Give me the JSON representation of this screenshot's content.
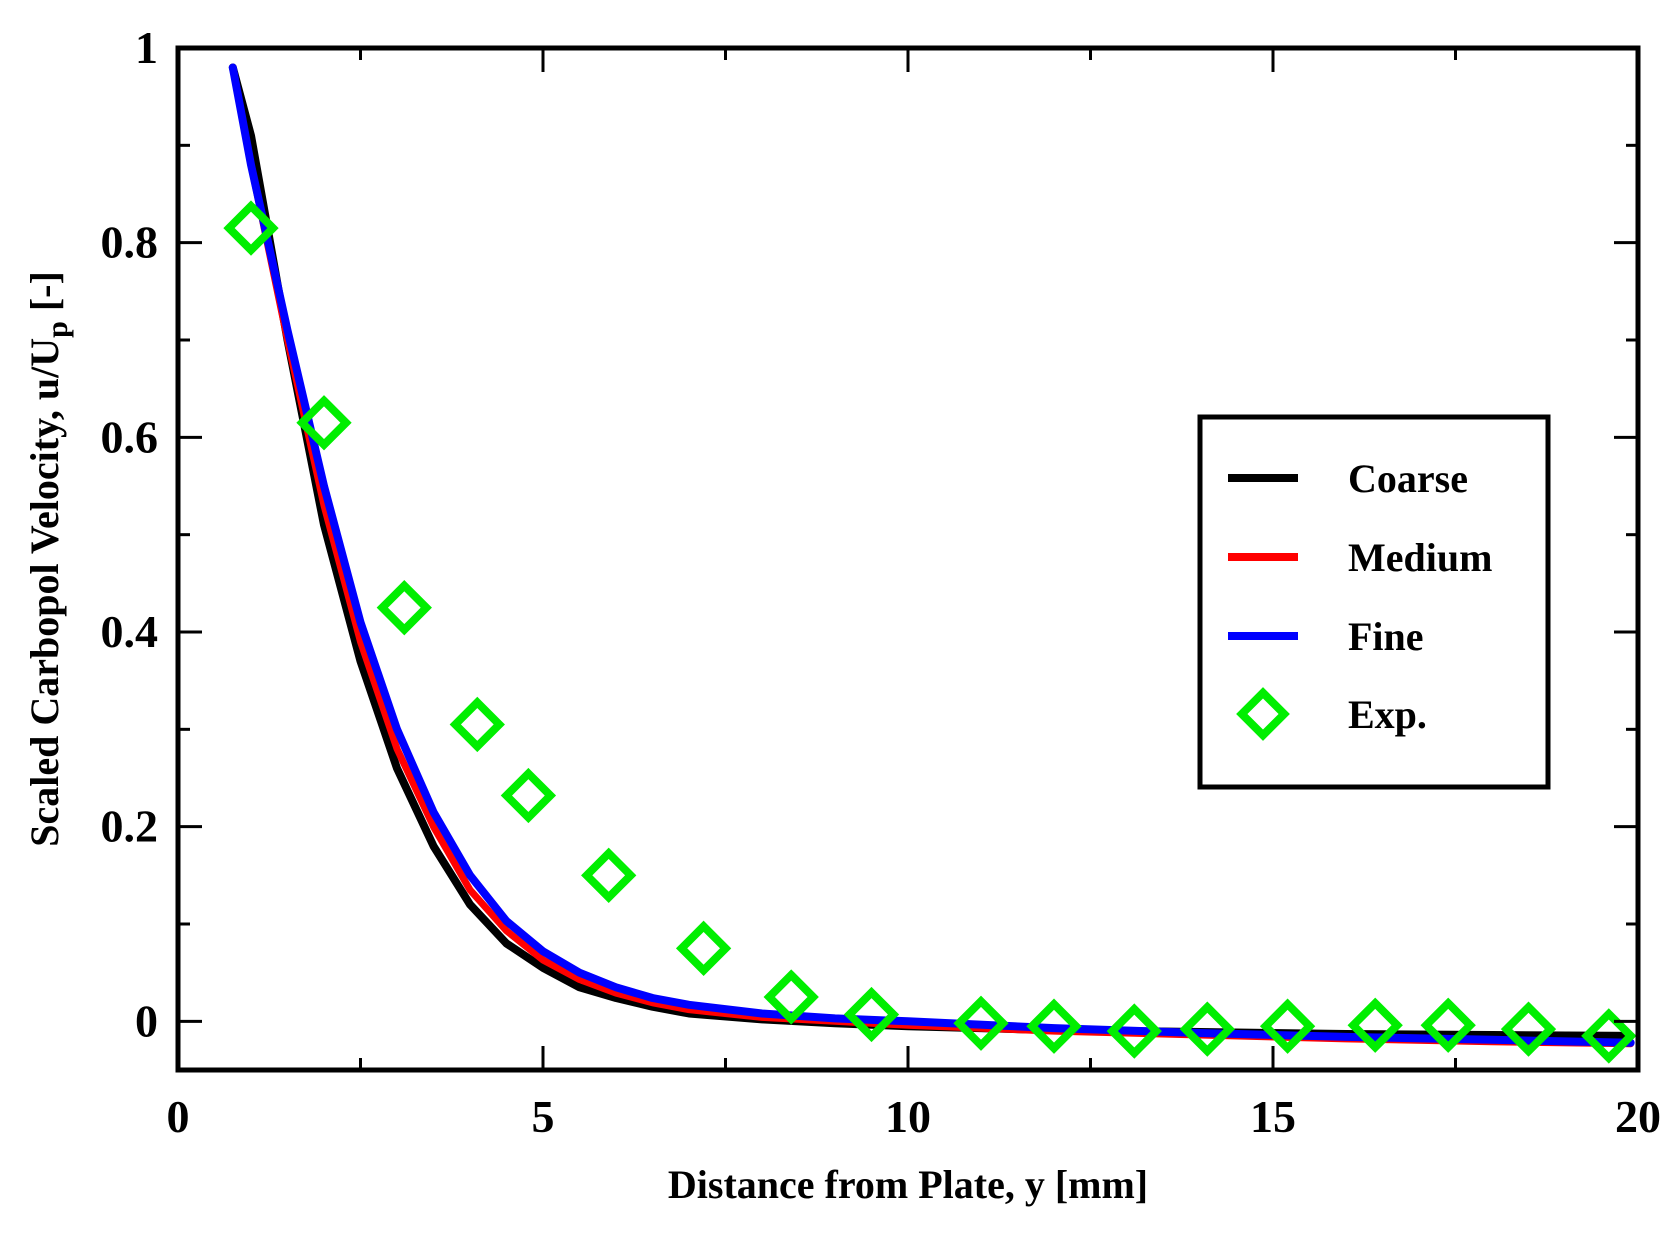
{
  "chart_data": {
    "type": "line",
    "title": "",
    "xlabel": "Distance from Plate, y [mm]",
    "ylabel_main": "Scaled Carbopol Velocity, u/U",
    "ylabel_sub": "p",
    "ylabel_tail": " [-]",
    "xlim": [
      0,
      20
    ],
    "ylim": [
      -0.05,
      1
    ],
    "x_ticks": [
      0,
      5,
      10,
      15,
      20
    ],
    "x_tick_labels": [
      "0",
      "5",
      "10",
      "15",
      "20"
    ],
    "x_minor_step": 2.5,
    "y_ticks": [
      0,
      0.2,
      0.4,
      0.6,
      0.8,
      1
    ],
    "y_tick_labels": [
      "0",
      "0.2",
      "0.4",
      "0.6",
      "0.8",
      "1"
    ],
    "y_minor_step": 0.1,
    "grid": false,
    "legend_position": "center-right",
    "series": [
      {
        "name": "Coarse",
        "color": "#000000",
        "style": "line",
        "x": [
          0.75,
          1.0,
          1.5,
          2.0,
          2.5,
          3.0,
          3.5,
          4.0,
          4.5,
          5.0,
          5.5,
          6.0,
          6.5,
          7.0,
          8.0,
          9.0,
          10.0,
          12.0,
          14.0,
          16.0,
          18.0,
          19.9
        ],
        "y": [
          0.98,
          0.91,
          0.7,
          0.51,
          0.37,
          0.26,
          0.18,
          0.12,
          0.08,
          0.055,
          0.035,
          0.024,
          0.015,
          0.008,
          0.002,
          -0.002,
          -0.005,
          -0.009,
          -0.011,
          -0.013,
          -0.014,
          -0.015
        ]
      },
      {
        "name": "Medium",
        "color": "#ff0000",
        "style": "line",
        "x": [
          0.75,
          1.0,
          1.5,
          2.0,
          2.5,
          3.0,
          3.5,
          4.0,
          4.5,
          5.0,
          5.5,
          6.0,
          6.5,
          7.0,
          8.0,
          9.0,
          10.0,
          12.0,
          14.0,
          16.0,
          18.0,
          19.9
        ],
        "y": [
          0.98,
          0.88,
          0.7,
          0.53,
          0.39,
          0.28,
          0.2,
          0.135,
          0.093,
          0.063,
          0.043,
          0.029,
          0.019,
          0.012,
          0.004,
          0.0,
          -0.004,
          -0.01,
          -0.014,
          -0.018,
          -0.021,
          -0.023
        ]
      },
      {
        "name": "Fine",
        "color": "#0000ff",
        "style": "line",
        "x": [
          0.75,
          1.0,
          1.5,
          2.0,
          2.5,
          3.0,
          3.5,
          4.0,
          4.5,
          5.0,
          5.5,
          6.0,
          6.5,
          7.0,
          8.0,
          9.0,
          10.0,
          12.0,
          14.0,
          16.0,
          18.0,
          19.9
        ],
        "y": [
          0.98,
          0.88,
          0.71,
          0.55,
          0.41,
          0.3,
          0.215,
          0.15,
          0.103,
          0.072,
          0.05,
          0.035,
          0.024,
          0.017,
          0.008,
          0.003,
          0.0,
          -0.007,
          -0.012,
          -0.016,
          -0.019,
          -0.022
        ]
      },
      {
        "name": "Exp.",
        "color": "#00ee00",
        "style": "marker-diamond",
        "x": [
          1.0,
          2.0,
          3.1,
          4.1,
          4.8,
          5.9,
          7.2,
          8.4,
          9.5,
          11.0,
          12.0,
          13.1,
          14.1,
          15.2,
          16.4,
          17.4,
          18.5,
          19.6
        ],
        "y": [
          0.815,
          0.615,
          0.425,
          0.305,
          0.232,
          0.15,
          0.075,
          0.025,
          0.007,
          -0.002,
          -0.005,
          -0.01,
          -0.008,
          -0.005,
          -0.004,
          -0.004,
          -0.008,
          -0.015
        ]
      }
    ]
  }
}
